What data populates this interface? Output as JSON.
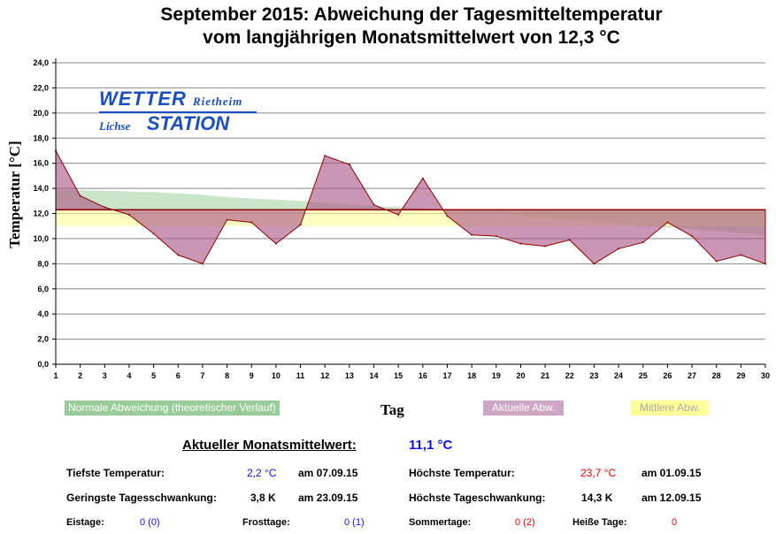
{
  "chart_data": {
    "type": "area",
    "title": "September 2015: Abweichung der Tagesmitteltemperatur",
    "subtitle": "vom langjährigen Monatsmittelwert von 12,3 °C",
    "xlabel": "Tag",
    "ylabel": "Temperatur [°C]",
    "x": [
      1,
      2,
      3,
      4,
      5,
      6,
      7,
      8,
      9,
      10,
      11,
      12,
      13,
      14,
      15,
      16,
      17,
      18,
      19,
      20,
      21,
      22,
      23,
      24,
      25,
      26,
      27,
      28,
      29,
      30
    ],
    "ylim": [
      0,
      24
    ],
    "yticks": [
      "0,0",
      "2,0",
      "4,0",
      "6,0",
      "8,0",
      "10,0",
      "12,0",
      "14,0",
      "16,0",
      "18,0",
      "20,0",
      "22,0",
      "24,0"
    ],
    "reference_mean": 12.3,
    "mean_band": [
      11.0,
      12.3
    ],
    "series": [
      {
        "name": "Aktuelle Abw.",
        "color": "#c28aa8",
        "values": [
          17.0,
          13.4,
          12.5,
          11.9,
          10.4,
          8.7,
          8.0,
          11.5,
          11.3,
          9.6,
          11.1,
          16.6,
          15.9,
          12.7,
          11.9,
          14.8,
          11.8,
          10.3,
          10.2,
          9.6,
          9.4,
          9.9,
          8.0,
          9.2,
          9.7,
          11.3,
          10.2,
          8.2,
          8.7,
          8.0
        ]
      },
      {
        "name": "Normale Abweichung (theoretischer Verlauf)",
        "color": "#98cc98",
        "values": [
          13.9,
          13.85,
          13.8,
          13.75,
          13.7,
          13.6,
          13.5,
          13.3,
          13.2,
          13.1,
          13.0,
          12.85,
          12.7,
          12.6,
          12.5,
          12.4,
          12.2,
          12.1,
          12.0,
          11.8,
          11.7,
          11.5,
          11.35,
          11.2,
          11.0,
          10.9,
          10.75,
          10.6,
          10.45,
          10.3
        ]
      },
      {
        "name": "Mittlere Abw.",
        "color": "#ffff99"
      }
    ],
    "legend": [
      "Normale Abweichung (theoretischer Verlauf)",
      "Aktuelle Abw.",
      "Mittlere Abw."
    ]
  },
  "logo": {
    "line1": "WETTER",
    "line1b": "Rietheim",
    "line2a": "Lichse",
    "line2b": "STATION"
  },
  "stats": {
    "month_mean_label": "Aktueller Monatsmittelwert:",
    "month_mean": "11,1 °C",
    "min_label": "Tiefste Temperatur:",
    "min_val": "2,2 °C",
    "min_date": "am 07.09.15",
    "max_label": "Höchste Temperatur:",
    "max_val": "23,7 °C",
    "max_date": "am 01.09.15",
    "minrange_label": "Geringste Tagesschwankung:",
    "minrange_val": "3,8 K",
    "minrange_date": "am 23.09.15",
    "maxrange_label": "Höchste Tageschwankung:",
    "maxrange_val": "14,3 K",
    "maxrange_date": "am 12.09.15",
    "eis_label": "Eistage:",
    "eis_val": "0 (0)",
    "frost_label": "Frosttage:",
    "frost_val": "0 (1)",
    "sommer_label": "Sommertage:",
    "sommer_val": "0 (2)",
    "heiss_label": "Heiße Tage:",
    "heiss_val": "0"
  }
}
